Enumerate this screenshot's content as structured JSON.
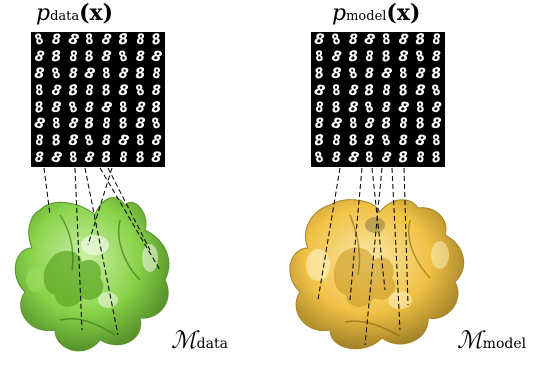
{
  "panels": [
    {
      "id": "data",
      "title_base": "p",
      "title_sub": "data",
      "title_arg": "(x)",
      "manifold_symbol": "ℳ",
      "manifold_sub": "data",
      "color_fill": "#7fcf3a",
      "color_dark": "#3d7a12",
      "digit_grid": [
        [
          "8",
          "8",
          "8",
          "8",
          "8",
          "8",
          "8",
          "8"
        ],
        [
          "8",
          "8",
          "8",
          "8",
          "8",
          "8",
          "8",
          "8"
        ],
        [
          "8",
          "8",
          "8",
          "8",
          "8",
          "8",
          "8",
          "8"
        ],
        [
          "8",
          "8",
          "8",
          "8",
          "8",
          "8",
          "8",
          "8"
        ],
        [
          "8",
          "8",
          "8",
          "8",
          "8",
          "8",
          "8",
          "8"
        ],
        [
          "8",
          "8",
          "8",
          "8",
          "8",
          "8",
          "8",
          "8"
        ],
        [
          "8",
          "8",
          "8",
          "8",
          "8",
          "8",
          "8",
          "8"
        ],
        [
          "8",
          "8",
          "8",
          "8",
          "8",
          "8",
          "8",
          "8"
        ]
      ]
    },
    {
      "id": "model",
      "title_base": "p",
      "title_sub": "model",
      "title_arg": "(x)",
      "manifold_symbol": "ℳ",
      "manifold_sub": "model",
      "color_fill": "#f2c23a",
      "color_dark": "#8a6a10",
      "digit_grid": [
        [
          "8",
          "8",
          "8",
          "8",
          "8",
          "8",
          "8",
          "8"
        ],
        [
          "8",
          "8",
          "8",
          "8",
          "8",
          "8",
          "8",
          "8"
        ],
        [
          "8",
          "8",
          "8",
          "8",
          "8",
          "8",
          "8",
          "8"
        ],
        [
          "8",
          "8",
          "8",
          "8",
          "8",
          "8",
          "8",
          "8"
        ],
        [
          "8",
          "8",
          "8",
          "8",
          "8",
          "8",
          "8",
          "8"
        ],
        [
          "8",
          "8",
          "8",
          "8",
          "8",
          "8",
          "8",
          "8"
        ],
        [
          "8",
          "8",
          "8",
          "8",
          "8",
          "8",
          "8",
          "8"
        ],
        [
          "8",
          "8",
          "8",
          "8",
          "8",
          "8",
          "8",
          "8"
        ]
      ]
    }
  ]
}
